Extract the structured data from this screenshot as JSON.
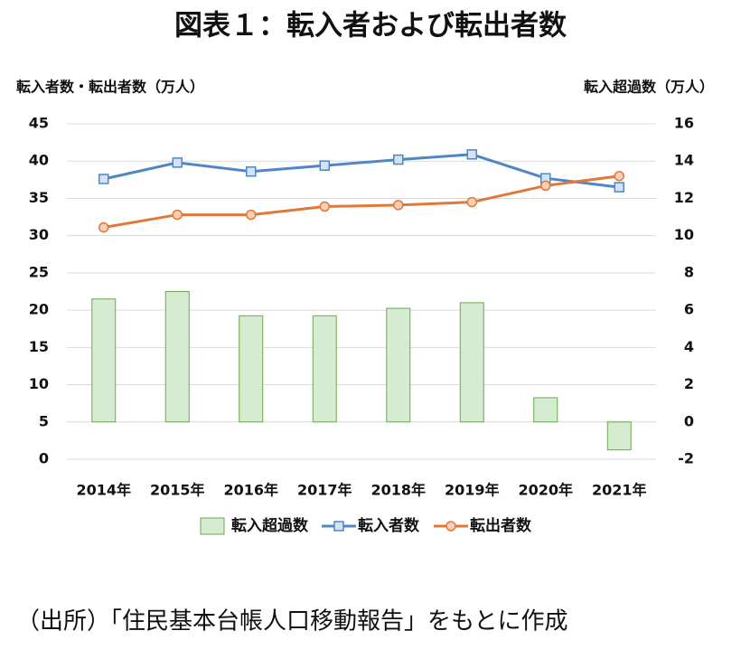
{
  "chart_data": {
    "type": "combo",
    "title": "図表１：転入者および転出者数",
    "y_label": "転入者数・転出者数（万人）",
    "y2_label": "転入超過数（万人）",
    "note": "（出所）「住民基本台帳人口移動報告」をもとに作成",
    "categories": [
      "2014年",
      "2015年",
      "2016年",
      "2017年",
      "2018年",
      "2019年",
      "2020年",
      "2021年"
    ],
    "series": [
      {
        "name": "転入超過数",
        "type": "bar",
        "axis": "y2",
        "color": "#d6ecd0",
        "stroke": "#6aa84f",
        "values": [
          6.6,
          7.0,
          5.7,
          5.7,
          6.1,
          6.4,
          1.3,
          -1.5
        ]
      },
      {
        "name": "転入者数",
        "type": "line",
        "color": "#4f87c6",
        "marker": "square",
        "marker_fill": "#d3e2f4",
        "values": [
          37.6,
          39.8,
          38.6,
          39.4,
          40.2,
          40.9,
          37.7,
          36.5
        ]
      },
      {
        "name": "転出者数",
        "type": "line",
        "color": "#e0783a",
        "marker": "circle",
        "marker_fill": "#f8cfb3",
        "values": [
          31.1,
          32.8,
          32.8,
          33.9,
          34.1,
          34.5,
          36.7,
          38.0
        ]
      }
    ],
    "ylim": [
      0,
      45
    ],
    "yticks": [
      0,
      5,
      10,
      15,
      20,
      25,
      30,
      35,
      40,
      45
    ],
    "y2lim": [
      -2,
      16
    ],
    "y2ticks": [
      -2,
      0,
      2,
      4,
      6,
      8,
      10,
      12,
      14,
      16
    ],
    "grid": true,
    "legend": "bottom"
  }
}
